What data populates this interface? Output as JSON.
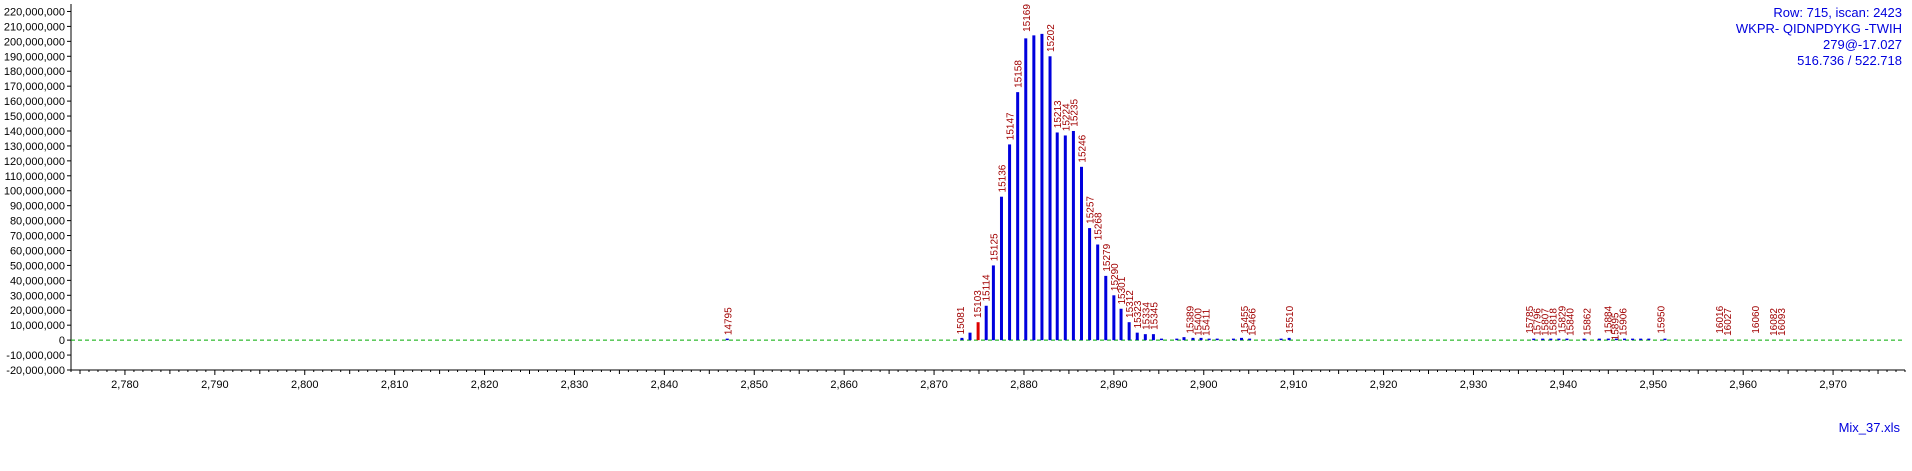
{
  "chart_data": {
    "type": "bar",
    "xlim": [
      2774,
      2978
    ],
    "ylim": [
      -20000000,
      225000000
    ],
    "x_ticks": [
      2780,
      2790,
      2800,
      2810,
      2820,
      2830,
      2840,
      2850,
      2860,
      2870,
      2880,
      2890,
      2900,
      2910,
      2920,
      2930,
      2940,
      2950,
      2960,
      2970
    ],
    "x_tick_labels": [
      "2,780",
      "2,790",
      "2,800",
      "2,810",
      "2,820",
      "2,830",
      "2,840",
      "2,850",
      "2,860",
      "2,870",
      "2,880",
      "2,890",
      "2,900",
      "2,910",
      "2,920",
      "2,930",
      "2,940",
      "2,950",
      "2,960",
      "2,970"
    ],
    "y_ticks": [
      -20000000,
      -10000000,
      0,
      10000000,
      20000000,
      30000000,
      40000000,
      50000000,
      60000000,
      70000000,
      80000000,
      90000000,
      100000000,
      110000000,
      120000000,
      130000000,
      140000000,
      150000000,
      160000000,
      170000000,
      180000000,
      190000000,
      200000000,
      210000000,
      220000000
    ],
    "y_tick_labels": [
      "-20,000,000",
      "-10,000,000",
      "0",
      "10,000,000",
      "20,000,000",
      "30,000,000",
      "40,000,000",
      "50,000,000",
      "60,000,000",
      "70,000,000",
      "80,000,000",
      "90,000,000",
      "100,000,000",
      "110,000,000",
      "120,000,000",
      "130,000,000",
      "140,000,000",
      "150,000,000",
      "160,000,000",
      "170,000,000",
      "180,000,000",
      "190,000,000",
      "200,000,000",
      "210,000,000",
      "220,000,000"
    ],
    "zero_line": {
      "style": "dashed",
      "color": "#00aa00"
    },
    "grid": false,
    "bars": [
      {
        "x": 2847.0,
        "y": 1000000,
        "color": "#0000dd"
      },
      {
        "x": 2873.1,
        "y": 1500000,
        "color": "#0000dd"
      },
      {
        "x": 2874.0,
        "y": 5000000,
        "color": "#0000dd"
      },
      {
        "x": 2874.9,
        "y": 12000000,
        "color": "#dd0000"
      },
      {
        "x": 2875.8,
        "y": 23000000,
        "color": "#0000dd"
      },
      {
        "x": 2876.6,
        "y": 50000000,
        "color": "#0000dd"
      },
      {
        "x": 2877.5,
        "y": 96000000,
        "color": "#0000dd"
      },
      {
        "x": 2878.4,
        "y": 131000000,
        "color": "#0000dd"
      },
      {
        "x": 2879.3,
        "y": 166000000,
        "color": "#0000dd"
      },
      {
        "x": 2880.2,
        "y": 202000000,
        "color": "#0000dd"
      },
      {
        "x": 2881.1,
        "y": 204000000,
        "color": "#0000dd"
      },
      {
        "x": 2882.0,
        "y": 205000000,
        "color": "#0000dd"
      },
      {
        "x": 2882.9,
        "y": 190000000,
        "color": "#0000dd"
      },
      {
        "x": 2883.7,
        "y": 139000000,
        "color": "#0000dd"
      },
      {
        "x": 2884.6,
        "y": 137000000,
        "color": "#0000dd"
      },
      {
        "x": 2885.5,
        "y": 140000000,
        "color": "#0000dd"
      },
      {
        "x": 2886.4,
        "y": 116000000,
        "color": "#0000dd"
      },
      {
        "x": 2887.3,
        "y": 75000000,
        "color": "#0000dd"
      },
      {
        "x": 2888.2,
        "y": 64000000,
        "color": "#0000dd"
      },
      {
        "x": 2889.1,
        "y": 43000000,
        "color": "#0000dd"
      },
      {
        "x": 2890.0,
        "y": 30000000,
        "color": "#0000dd"
      },
      {
        "x": 2890.8,
        "y": 21000000,
        "color": "#0000dd"
      },
      {
        "x": 2891.7,
        "y": 12000000,
        "color": "#0000dd"
      },
      {
        "x": 2892.6,
        "y": 5000000,
        "color": "#0000dd"
      },
      {
        "x": 2893.5,
        "y": 4000000,
        "color": "#0000dd"
      },
      {
        "x": 2894.4,
        "y": 4000000,
        "color": "#0000dd"
      },
      {
        "x": 2895.3,
        "y": 1000000,
        "color": "#0000dd"
      },
      {
        "x": 2897.0,
        "y": 1000000,
        "color": "#0000dd"
      },
      {
        "x": 2897.8,
        "y": 2000000,
        "color": "#0000dd"
      },
      {
        "x": 2898.8,
        "y": 1500000,
        "color": "#0000dd"
      },
      {
        "x": 2899.7,
        "y": 1500000,
        "color": "#0000dd"
      },
      {
        "x": 2900.6,
        "y": 1000000,
        "color": "#0000dd"
      },
      {
        "x": 2901.5,
        "y": 1000000,
        "color": "#0000dd"
      },
      {
        "x": 2903.3,
        "y": 1000000,
        "color": "#0000dd"
      },
      {
        "x": 2904.2,
        "y": 1500000,
        "color": "#0000dd"
      },
      {
        "x": 2905.1,
        "y": 1000000,
        "color": "#0000dd"
      },
      {
        "x": 2908.6,
        "y": 1000000,
        "color": "#0000dd"
      },
      {
        "x": 2909.5,
        "y": 1500000,
        "color": "#0000dd"
      },
      {
        "x": 2936.7,
        "y": 1000000,
        "color": "#0000dd"
      },
      {
        "x": 2937.7,
        "y": 1000000,
        "color": "#0000dd"
      },
      {
        "x": 2938.6,
        "y": 1000000,
        "color": "#0000dd"
      },
      {
        "x": 2939.5,
        "y": 1000000,
        "color": "#0000dd"
      },
      {
        "x": 2940.4,
        "y": 1000000,
        "color": "#0000dd"
      },
      {
        "x": 2942.3,
        "y": 1000000,
        "color": "#0000dd"
      },
      {
        "x": 2944.0,
        "y": 1000000,
        "color": "#0000dd"
      },
      {
        "x": 2945.0,
        "y": 1000000,
        "color": "#0000dd"
      },
      {
        "x": 2945.9,
        "y": 1000000,
        "color": "#0000dd"
      },
      {
        "x": 2946.8,
        "y": 1000000,
        "color": "#0000dd"
      },
      {
        "x": 2947.7,
        "y": 1000000,
        "color": "#0000dd"
      },
      {
        "x": 2948.6,
        "y": 1000000,
        "color": "#0000dd"
      },
      {
        "x": 2949.5,
        "y": 1000000,
        "color": "#0000dd"
      },
      {
        "x": 2951.3,
        "y": 1000000,
        "color": "#0000dd"
      }
    ],
    "peak_labels": [
      {
        "text": "14795",
        "x": 2847.0,
        "y": 2000000,
        "color": "#a00000"
      },
      {
        "text": "15081",
        "x": 2872.9,
        "y": 2500000,
        "color": "#a00000"
      },
      {
        "text": "15103",
        "x": 2874.8,
        "y": 13500000,
        "color": "#a00000"
      },
      {
        "text": "15114",
        "x": 2875.7,
        "y": 24500000,
        "color": "#a00000"
      },
      {
        "text": "15125",
        "x": 2876.6,
        "y": 51500000,
        "color": "#a00000"
      },
      {
        "text": "15136",
        "x": 2877.5,
        "y": 97500000,
        "color": "#a00000"
      },
      {
        "text": "15147",
        "x": 2878.4,
        "y": 132500000,
        "color": "#a00000"
      },
      {
        "text": "15158",
        "x": 2879.3,
        "y": 167500000,
        "color": "#a00000"
      },
      {
        "text": "15169",
        "x": 2880.2,
        "y": 205000000,
        "color": "#a00000"
      },
      {
        "text": "15202",
        "x": 2882.9,
        "y": 191500000,
        "color": "#a00000"
      },
      {
        "text": "15213",
        "x": 2883.7,
        "y": 140500000,
        "color": "#a00000"
      },
      {
        "text": "15224",
        "x": 2884.6,
        "y": 138500000,
        "color": "#a00000"
      },
      {
        "text": "15235",
        "x": 2885.5,
        "y": 141500000,
        "color": "#a00000"
      },
      {
        "text": "15246",
        "x": 2886.4,
        "y": 117500000,
        "color": "#a00000"
      },
      {
        "text": "15257",
        "x": 2887.3,
        "y": 76500000,
        "color": "#a00000"
      },
      {
        "text": "15268",
        "x": 2888.2,
        "y": 65500000,
        "color": "#a00000"
      },
      {
        "text": "15279",
        "x": 2889.1,
        "y": 44500000,
        "color": "#a00000"
      },
      {
        "text": "15290",
        "x": 2890.0,
        "y": 31500000,
        "color": "#a00000"
      },
      {
        "text": "15301",
        "x": 2890.8,
        "y": 22500000,
        "color": "#a00000"
      },
      {
        "text": "15312",
        "x": 2891.7,
        "y": 13500000,
        "color": "#a00000"
      },
      {
        "text": "15323",
        "x": 2892.6,
        "y": 6500000,
        "color": "#a00000"
      },
      {
        "text": "15334",
        "x": 2893.5,
        "y": 5500000,
        "color": "#a00000"
      },
      {
        "text": "15345",
        "x": 2894.4,
        "y": 5500000,
        "color": "#a00000"
      },
      {
        "text": "15389",
        "x": 2898.4,
        "y": 3000000,
        "color": "#a00000"
      },
      {
        "text": "15400",
        "x": 2899.3,
        "y": 1500000,
        "color": "#a00000"
      },
      {
        "text": "15411",
        "x": 2900.2,
        "y": 1500000,
        "color": "#a00000"
      },
      {
        "text": "15455",
        "x": 2904.5,
        "y": 3000000,
        "color": "#a00000"
      },
      {
        "text": "15466",
        "x": 2905.3,
        "y": 1500000,
        "color": "#a00000"
      },
      {
        "text": "15510",
        "x": 2909.5,
        "y": 3000000,
        "color": "#a00000"
      },
      {
        "text": "15785",
        "x": 2936.2,
        "y": 3000000,
        "color": "#a00000"
      },
      {
        "text": "15796",
        "x": 2937.0,
        "y": 1500000,
        "color": "#a00000"
      },
      {
        "text": "15807",
        "x": 2937.9,
        "y": 1500000,
        "color": "#a00000"
      },
      {
        "text": "15818",
        "x": 2938.8,
        "y": 1500000,
        "color": "#a00000"
      },
      {
        "text": "15829",
        "x": 2939.8,
        "y": 3000000,
        "color": "#a00000"
      },
      {
        "text": "15840",
        "x": 2940.7,
        "y": 1500000,
        "color": "#a00000"
      },
      {
        "text": "15862",
        "x": 2942.6,
        "y": 1500000,
        "color": "#a00000"
      },
      {
        "text": "15884",
        "x": 2944.9,
        "y": 3000000,
        "color": "#a00000"
      },
      {
        "text": "15895",
        "x": 2945.7,
        "y": -1500000,
        "color": "#a00000"
      },
      {
        "text": "15906",
        "x": 2946.6,
        "y": 1500000,
        "color": "#a00000"
      },
      {
        "text": "15950",
        "x": 2950.8,
        "y": 3000000,
        "color": "#a00000"
      },
      {
        "text": "16016",
        "x": 2957.3,
        "y": 3000000,
        "color": "#a00000"
      },
      {
        "text": "16027",
        "x": 2958.2,
        "y": 1500000,
        "color": "#a00000"
      },
      {
        "text": "16060",
        "x": 2961.3,
        "y": 3000000,
        "color": "#a00000"
      },
      {
        "text": "16082",
        "x": 2963.3,
        "y": 1500000,
        "color": "#a00000"
      },
      {
        "text": "16093",
        "x": 2964.2,
        "y": 1500000,
        "color": "#a00000"
      }
    ]
  },
  "info": {
    "line1": "Row: 715, iscan: 2423",
    "line2": "WKPR- QIDNPDYKG -TWIH",
    "line3": "279@-17.027",
    "line4": "516.736 / 522.718",
    "color": "#0000dd"
  },
  "filename": "Mix_37.xls"
}
